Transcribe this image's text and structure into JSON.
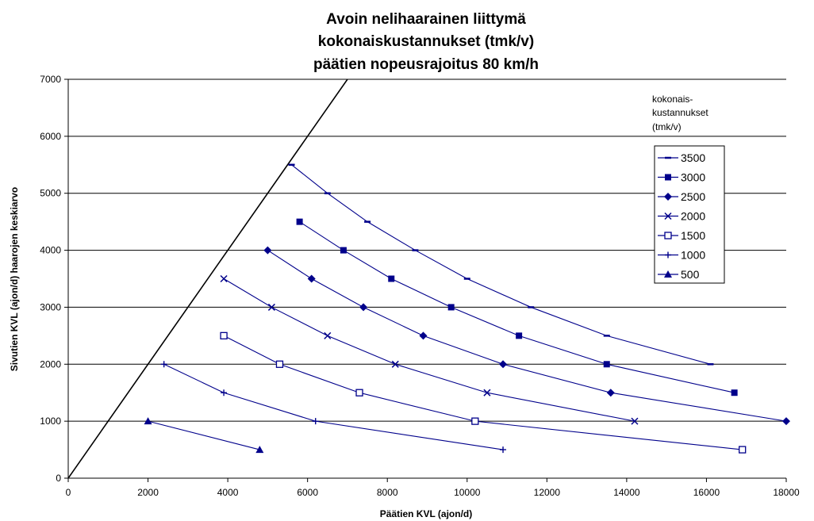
{
  "chart_data": {
    "type": "line",
    "title_lines": [
      "Avoin nelihaarainen liittymä",
      "kokonaiskustannukset (tmk/v)",
      "päätien nopeusrajoitus 80 km/h"
    ],
    "xlabel": "Päätien KVL (ajon/d)",
    "ylabel": "Sivutien KVL (ajon/d) haarojen keskiarvo",
    "xlim": [
      0,
      18000
    ],
    "ylim": [
      0,
      7000
    ],
    "x_ticks": [
      "0",
      "2000",
      "4000",
      "6000",
      "8000",
      "10000",
      "12000",
      "14000",
      "16000",
      "18000"
    ],
    "y_ticks": [
      "0",
      "1000",
      "2000",
      "3000",
      "4000",
      "5000",
      "6000",
      "7000"
    ],
    "horizontal_gridlines": true,
    "legend_title_lines": [
      "kokonais-",
      "kustannukset",
      "(tmk/v)"
    ],
    "legend_position": "right",
    "boundary_line": {
      "points": [
        [
          0,
          0
        ],
        [
          7000,
          7000
        ]
      ],
      "color": "#000000"
    },
    "line_color": "#00008B",
    "series": [
      {
        "name": "3500",
        "marker": "dash",
        "points": [
          [
            5600,
            5500
          ],
          [
            6500,
            5000
          ],
          [
            7500,
            4500
          ],
          [
            8700,
            4000
          ],
          [
            10000,
            3500
          ],
          [
            11600,
            3000
          ],
          [
            13500,
            2500
          ],
          [
            16100,
            2000
          ]
        ]
      },
      {
        "name": "3000",
        "marker": "square-filled",
        "points": [
          [
            5800,
            4500
          ],
          [
            6900,
            4000
          ],
          [
            8100,
            3500
          ],
          [
            9600,
            3000
          ],
          [
            11300,
            2500
          ],
          [
            13500,
            2000
          ],
          [
            16700,
            1500
          ]
        ]
      },
      {
        "name": "2500",
        "marker": "diamond",
        "points": [
          [
            5000,
            4000
          ],
          [
            6100,
            3500
          ],
          [
            7400,
            3000
          ],
          [
            8900,
            2500
          ],
          [
            10900,
            2000
          ],
          [
            13600,
            1500
          ],
          [
            18000,
            1000
          ]
        ]
      },
      {
        "name": "2000",
        "marker": "x",
        "points": [
          [
            3900,
            3500
          ],
          [
            5100,
            3000
          ],
          [
            6500,
            2500
          ],
          [
            8200,
            2000
          ],
          [
            10500,
            1500
          ],
          [
            14200,
            1000
          ]
        ]
      },
      {
        "name": "1500",
        "marker": "square-open",
        "points": [
          [
            3900,
            2500
          ],
          [
            5300,
            2000
          ],
          [
            7300,
            1500
          ],
          [
            10200,
            1000
          ],
          [
            16900,
            500
          ]
        ]
      },
      {
        "name": "1000",
        "marker": "plus",
        "points": [
          [
            2400,
            2000
          ],
          [
            3900,
            1500
          ],
          [
            6200,
            1000
          ],
          [
            10900,
            500
          ]
        ]
      },
      {
        "name": "500",
        "marker": "triangle",
        "points": [
          [
            2000,
            1000
          ],
          [
            4800,
            500
          ]
        ]
      }
    ]
  }
}
